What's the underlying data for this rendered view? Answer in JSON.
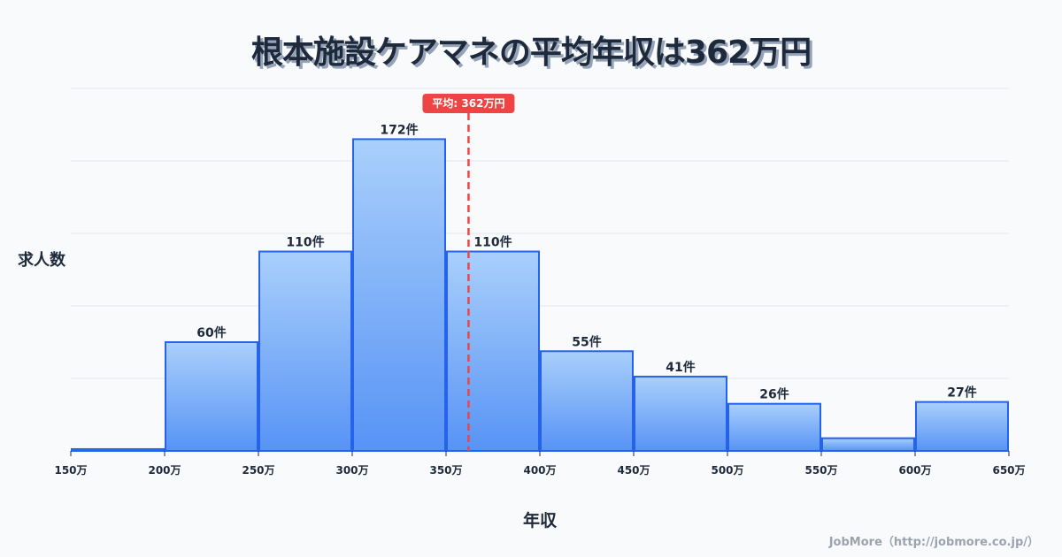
{
  "title": "根本施設ケアマネの平均年収は362万円",
  "ylabel": "求人数",
  "xlabel": "年収",
  "footer": "JobMore（http://jobmore.co.jp/）",
  "mean_label": "平均: 362万円",
  "colors": {
    "bar_top": "#A5CDFB",
    "bar_bottom": "#4F8EF5",
    "bar_stroke": "#2563EB",
    "mean_line": "#EF4444",
    "grid": "#E2E8F0",
    "text": "#1E293B"
  },
  "chart_data": {
    "type": "bar",
    "title": "根本施設ケアマネの平均年収は362万円",
    "xlabel": "年収",
    "ylabel": "求人数",
    "bins": [
      150,
      200,
      250,
      300,
      350,
      400,
      450,
      500,
      550,
      600,
      650
    ],
    "tick_labels": [
      "150万",
      "200万",
      "250万",
      "300万",
      "350万",
      "400万",
      "450万",
      "500万",
      "550万",
      "600万",
      "650万"
    ],
    "categories": [
      "150-200万",
      "200-250万",
      "250-300万",
      "300-350万",
      "350-400万",
      "400-450万",
      "450-500万",
      "500-550万",
      "550-600万",
      "600-650万"
    ],
    "values": [
      1,
      60,
      110,
      172,
      110,
      55,
      41,
      26,
      7,
      27
    ],
    "value_labels": [
      "",
      "60件",
      "110件",
      "172件",
      "110件",
      "55件",
      "41件",
      "26件",
      "",
      "27件"
    ],
    "mean": 362,
    "mean_label": "平均: 362万円",
    "ylim": [
      0,
      200
    ],
    "grid": true,
    "legend": null
  }
}
